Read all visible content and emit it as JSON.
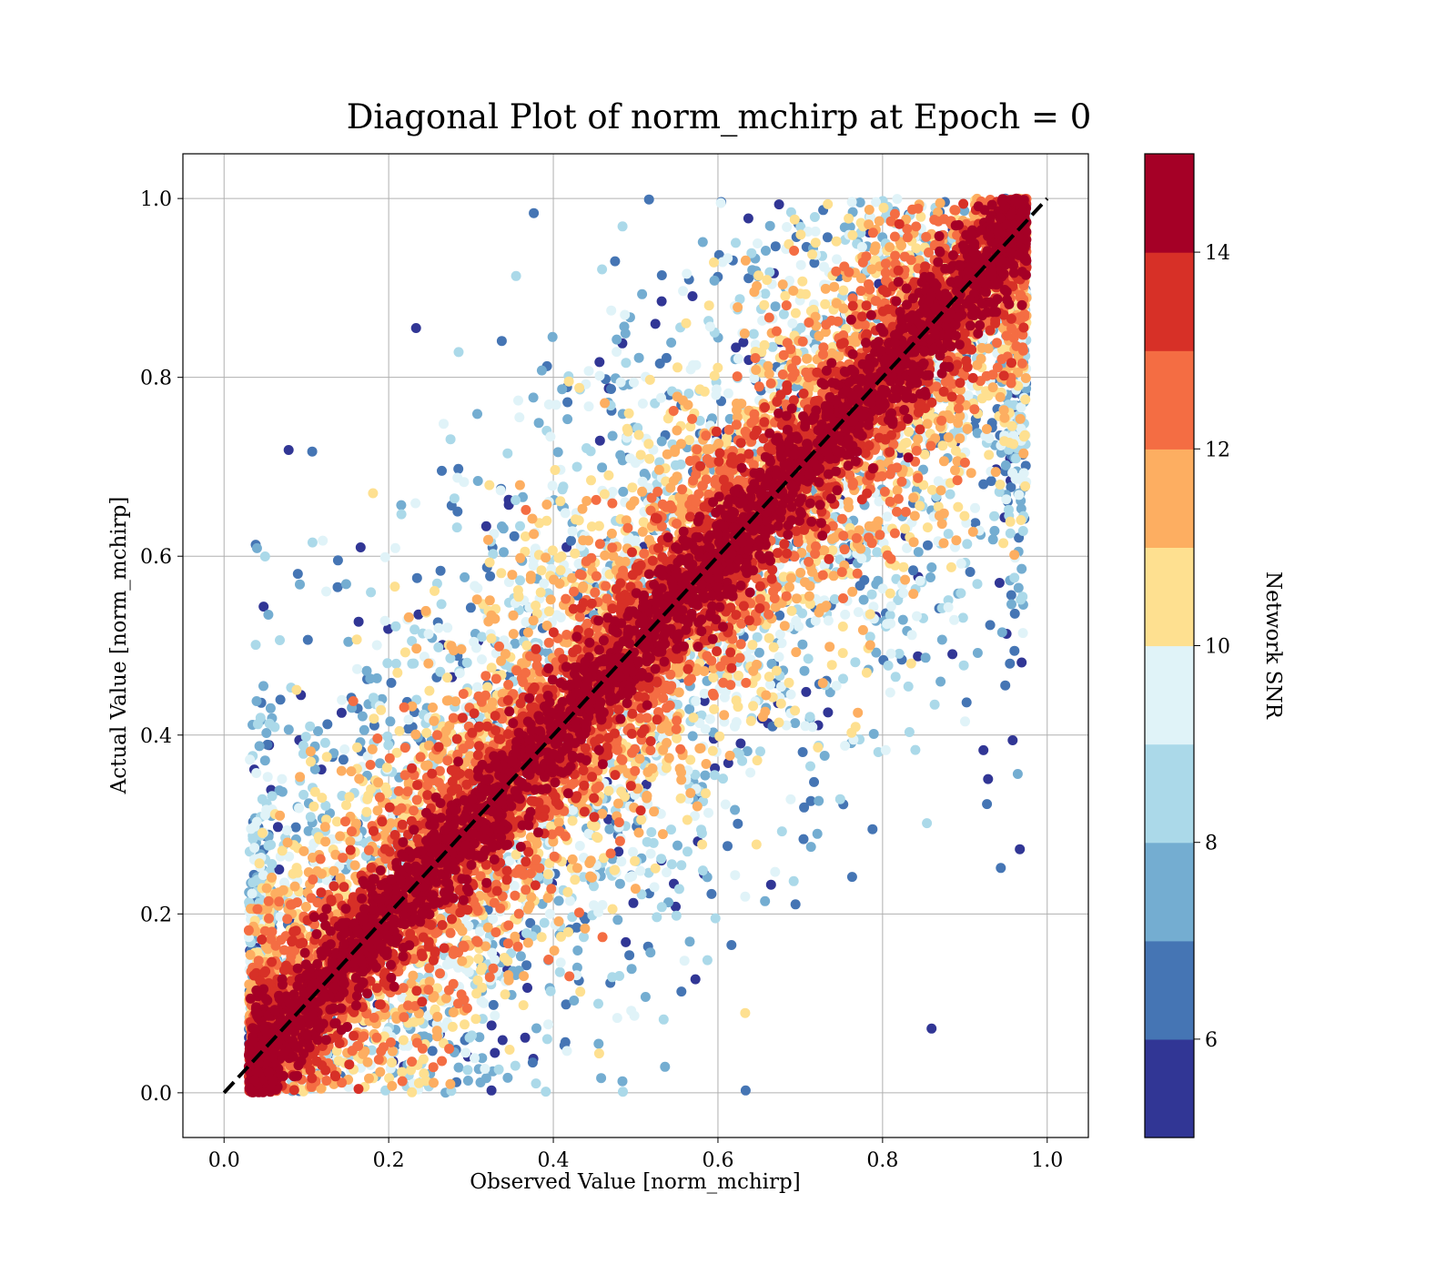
{
  "chart_data": {
    "type": "scatter",
    "title": "Diagonal Plot of norm_mchirp at Epoch = 0",
    "xlabel": "Observed Value [norm_mchirp]",
    "ylabel": "Actual Value [norm_mchirp]",
    "xlim": [
      -0.05,
      1.05
    ],
    "ylim": [
      -0.05,
      1.05
    ],
    "x_ticks": [
      "0.0",
      "0.2",
      "0.4",
      "0.6",
      "0.8",
      "1.0"
    ],
    "y_ticks": [
      "0.0",
      "0.2",
      "0.4",
      "0.6",
      "0.8",
      "1.0"
    ],
    "grid": true,
    "reference_line": {
      "style": "dashed",
      "color": "#000000",
      "from": [
        0,
        0
      ],
      "to": [
        1,
        1
      ]
    },
    "colorbar": {
      "label": "Network SNR",
      "range": [
        5,
        15
      ],
      "ticks": [
        "6",
        "8",
        "10",
        "12",
        "14"
      ],
      "colors": [
        "#313695",
        "#4575b4",
        "#74add1",
        "#abd9e9",
        "#e0f3f8",
        "#fee090",
        "#fdae61",
        "#f46d43",
        "#d73027",
        "#a50026"
      ]
    },
    "marker": "circle",
    "point_count_approx": 14000,
    "distribution": "points scattered about the y = x diagonal; high-SNR (dark red, >= 14) points tightly follow the diagonal, low-SNR (blue) points spread far from it; observed values span roughly 0.03 to 0.98 and actual values span 0.0 to 1.0"
  }
}
